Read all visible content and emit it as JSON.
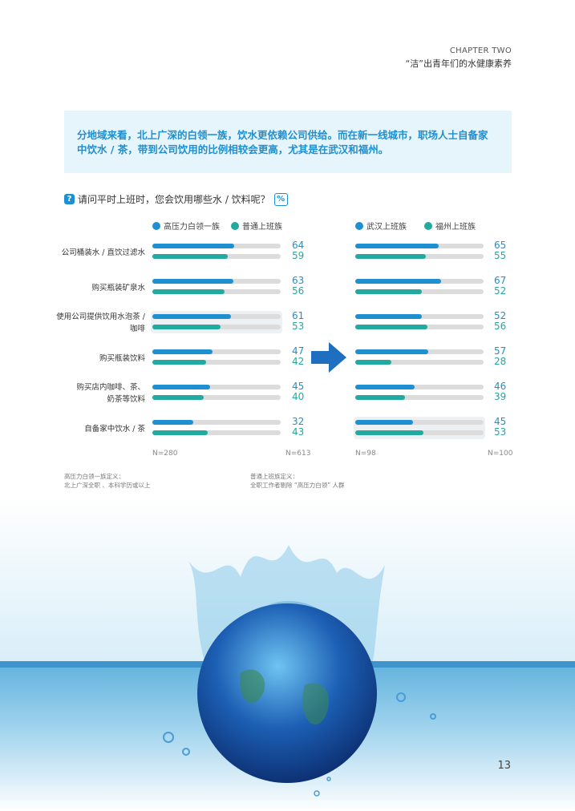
{
  "header": {
    "chapter": "CHAPTER TWO",
    "subtitle": "“洁”出青年们的水健康素养"
  },
  "summary": "分地域来看，北上广深的白领一族，饮水更依赖公司供给。而在新一线城市，职场人士自备家中饮水 / 茶，带到公司饮用的比例相较会更高，尤其是在武汉和福州。",
  "question": {
    "icon": "?",
    "text": "请问平时上班时，您会饮用哪些水 / 饮料呢？",
    "unit_badge": "%"
  },
  "colors": {
    "series_a": "#1e8fd0",
    "series_b": "#22aaa0",
    "track": "#dcdcdc"
  },
  "chart_data": {
    "type": "bar",
    "orientation": "horizontal",
    "unit": "%",
    "xlim": [
      0,
      100
    ],
    "categories": [
      "公司桶装水 / 直饮过滤水",
      "购买瓶装矿泉水",
      "使用公司提供饮用水泡茶 / 咖啡",
      "购买瓶装饮料",
      "购买店内咖啡、茶、奶茶等饮料",
      "自备家中饮水 / 茶"
    ],
    "category_lines": [
      [
        "公司桶装水 / 直饮过滤水"
      ],
      [
        "购买瓶装矿泉水"
      ],
      [
        "使用公司提供饮用水泡茶 /",
        "咖啡"
      ],
      [
        "购买瓶装饮料"
      ],
      [
        "购买店内咖啡、茶、",
        "奶茶等饮料"
      ],
      [
        "自备家中饮水 / 茶"
      ]
    ],
    "panels": [
      {
        "series": [
          {
            "name": "高压力白领一族",
            "values": [
              64,
              63,
              61,
              47,
              45,
              32
            ]
          },
          {
            "name": "普通上班族",
            "values": [
              59,
              56,
              53,
              42,
              40,
              43
            ]
          }
        ],
        "n_labels": [
          "N=280",
          "N=613"
        ],
        "highlight": 2
      },
      {
        "series": [
          {
            "name": "武汉上班族",
            "values": [
              65,
              67,
              52,
              57,
              46,
              45
            ]
          },
          {
            "name": "福州上班族",
            "values": [
              55,
              52,
              56,
              28,
              39,
              53
            ]
          }
        ],
        "n_labels": [
          "N=98",
          "N=100"
        ],
        "highlight": 5
      }
    ]
  },
  "definitions": [
    {
      "title": "高压力白领一族定义：",
      "text": "北上广深全职 、本科学历或以上"
    },
    {
      "title": "普通上班族定义：",
      "text": "全职工作者剔除 “高压力白领” 人群"
    }
  ],
  "page_number": "13"
}
